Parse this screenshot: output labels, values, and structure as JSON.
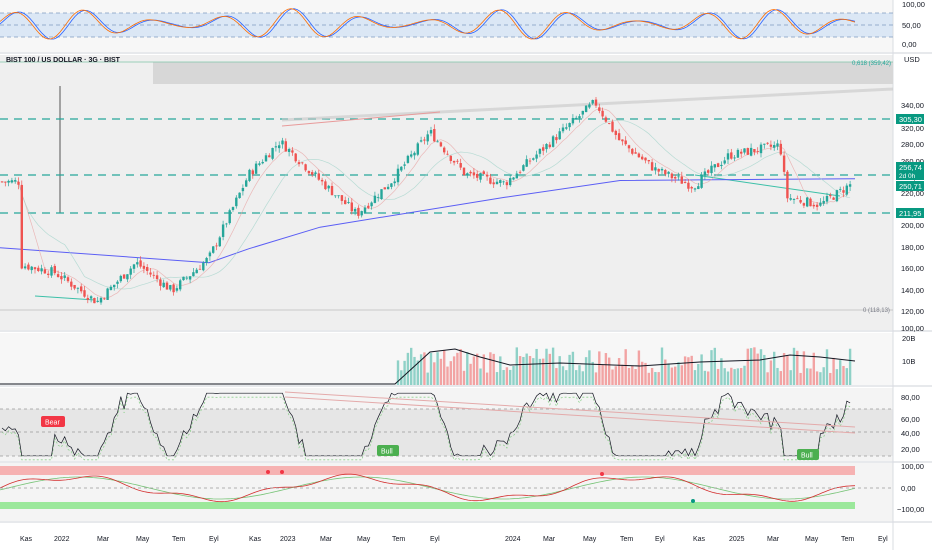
{
  "header": {
    "symbol": "BIST 100 / US DOLLAR · 3G · BIST",
    "currency": "USD"
  },
  "colors": {
    "up": "#26a69a",
    "down": "#ef5350",
    "ma_blue": "#5b5ef5",
    "stoch_k": "#2962ff",
    "stoch_d": "#ff6d00",
    "band_fill": "#dbe7f5",
    "bear": "#f23645",
    "bull": "#4caf50",
    "level_green": "#26a69a",
    "price_tag": "#089981"
  },
  "stoch_panel": {
    "levels": [
      "100,00",
      "50,00",
      "0,00"
    ]
  },
  "price_panel": {
    "y_ticks": [
      "340,00",
      "320,00",
      "280,00",
      "260,00",
      "240,00",
      "220,00",
      "200,00",
      "180,00",
      "160,00",
      "140,00",
      "120,00",
      "100,00"
    ],
    "fib_labels": [
      "0,618 (359,42)",
      "0 (118,13)"
    ],
    "price_tags": [
      "305,30",
      "256,74",
      "2d 0h",
      "250,71",
      "211,95"
    ],
    "horizontal_levels": [
      305.3,
      250.71,
      211.95
    ]
  },
  "volume_panel": {
    "y_ticks": [
      "20B",
      "10B"
    ]
  },
  "rsi_panel": {
    "y_ticks": [
      "80,00",
      "60,00",
      "40,00",
      "20,00"
    ],
    "labels": [
      "Bear",
      "Bull",
      "Bull"
    ]
  },
  "osc_panel": {
    "y_ticks": [
      "100,00",
      "0,00",
      "−100,00"
    ]
  },
  "x_axis": {
    "ticks": [
      "Kas",
      "2022",
      "Mar",
      "May",
      "Tem",
      "Eyl",
      "Kas",
      "2023",
      "Mar",
      "May",
      "Tem",
      "Eyl",
      "2024",
      "Mar",
      "May",
      "Tem",
      "Eyl",
      "Kas",
      "2025",
      "Mar",
      "May",
      "Tem",
      "Eyl"
    ]
  },
  "chart_data": {
    "type": "candlestick",
    "title": "BIST 100 / US DOLLAR · 3G · BIST",
    "ylim": [
      100,
      345
    ],
    "anchor_prices": [
      {
        "date": "Kas 2021",
        "price": 168
      },
      {
        "date": "2022",
        "price": 160
      },
      {
        "date": "Mar 2022",
        "price": 128
      },
      {
        "date": "May 2022",
        "price": 170
      },
      {
        "date": "Tem 2022",
        "price": 140
      },
      {
        "date": "Eyl 2022",
        "price": 175
      },
      {
        "date": "Kas 2022",
        "price": 265
      },
      {
        "date": "Dec 2022",
        "price": 300
      },
      {
        "date": "Mar 2023",
        "price": 258
      },
      {
        "date": "May 2023",
        "price": 222
      },
      {
        "date": "Tem 2023",
        "price": 258
      },
      {
        "date": "Eyl 2023",
        "price": 310
      },
      {
        "date": "Oct 2023",
        "price": 265
      },
      {
        "date": "2024",
        "price": 255
      },
      {
        "date": "Mar 2024",
        "price": 292
      },
      {
        "date": "May 2024",
        "price": 342
      },
      {
        "date": "Tem 2024",
        "price": 300
      },
      {
        "date": "Eyl 2024",
        "price": 270
      },
      {
        "date": "Kas 2024",
        "price": 252
      },
      {
        "date": "2025",
        "price": 285
      },
      {
        "date": "Mar 2025",
        "price": 296
      },
      {
        "date": "Apr 2025",
        "price": 240
      },
      {
        "date": "May 2025",
        "price": 232
      },
      {
        "date": "Tem 2025",
        "price": 256.74
      }
    ],
    "moving_average_200": [
      {
        "date": "Kas 2021",
        "price": 186
      },
      {
        "date": "Eyl 2022",
        "price": 170
      },
      {
        "date": "Kas 2022",
        "price": 185
      },
      {
        "date": "Mar 2023",
        "price": 208
      },
      {
        "date": "2024",
        "price": 240
      },
      {
        "date": "Tem 2024",
        "price": 258
      },
      {
        "date": "Tem 2025",
        "price": 260
      }
    ],
    "stochastic_range": [
      0,
      100
    ],
    "rsi_range": [
      20,
      90
    ],
    "oscillator_range": [
      -100,
      100
    ]
  }
}
